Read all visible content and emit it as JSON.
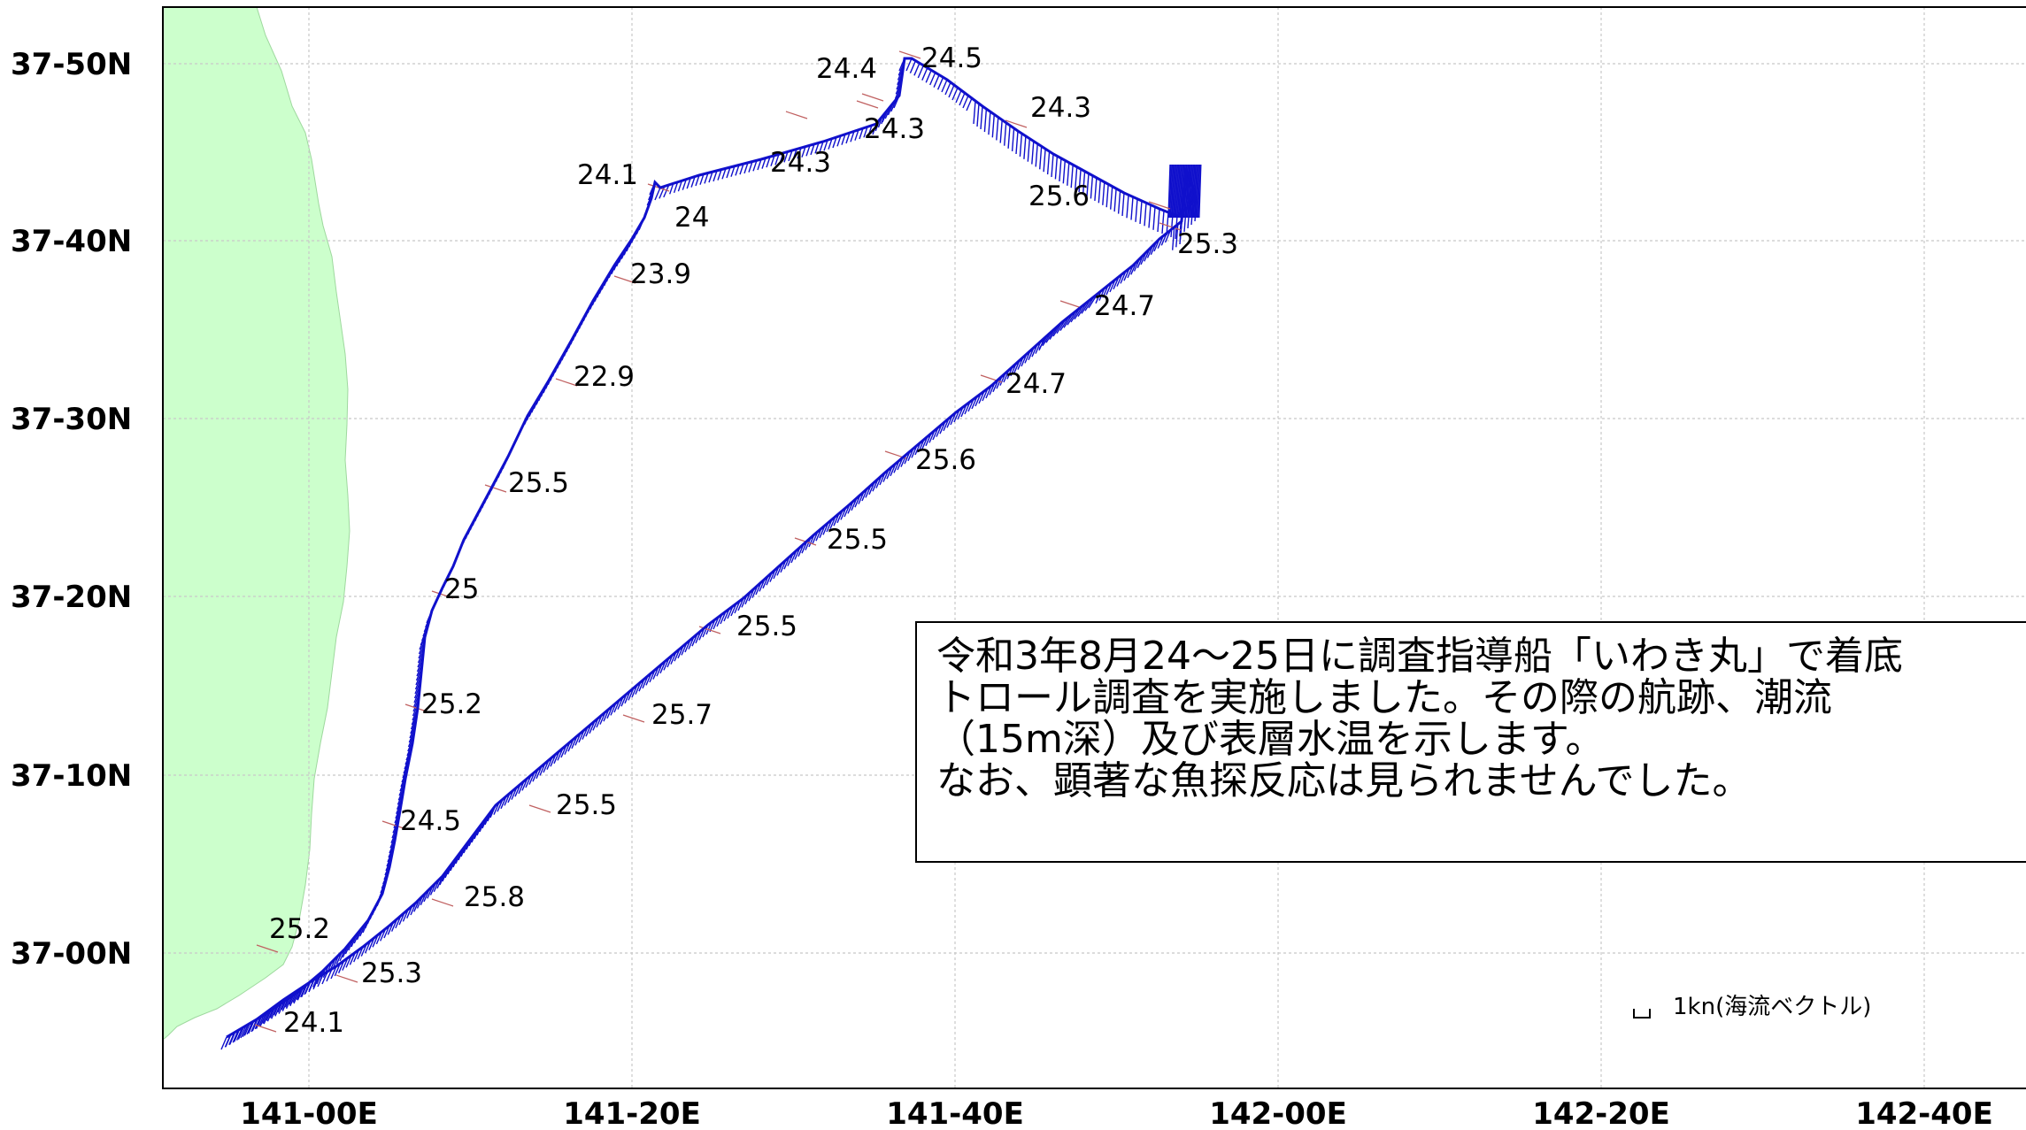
{
  "axes": {
    "lat_labels": [
      "37-50N",
      "37-40N",
      "37-30N",
      "37-20N",
      "37-10N",
      "37-00N"
    ],
    "lon_labels": [
      "141-00E",
      "141-20E",
      "141-40E",
      "142-00E",
      "142-20E",
      "142-40E"
    ]
  },
  "temperature_labels": [
    "24.5",
    "24.4",
    "24.3",
    "24.3",
    "24.3",
    "24.1",
    "24",
    "25.6",
    "25.3",
    "23.9",
    "24.7",
    "24.7",
    "22.9",
    "25.6",
    "25.5",
    "25.5",
    "25",
    "25.5",
    "25.2",
    "25.7",
    "24.5",
    "25.5",
    "25.8",
    "25.2",
    "25.3",
    "24.1"
  ],
  "note_lines": [
    "令和3年8月24～25日に調査指導船「いわき丸」で着底",
    "トロール調査を実施しました。その際の航跡、潮流",
    "（15m深）及び表層水温を示します。",
    "なお、顕著な魚探反応は見られませんでした。"
  ],
  "legend": {
    "label": "1kn(海流ベクトル)"
  },
  "colors": {
    "land": "#ccffcc",
    "track": "#1010cc",
    "grid": "#c8c8c8",
    "marker": "#c06060"
  }
}
